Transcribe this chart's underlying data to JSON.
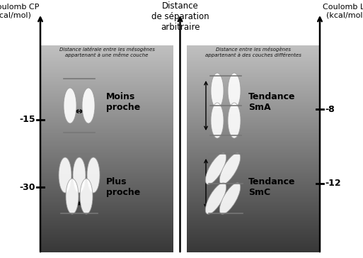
{
  "title_center": "Distance\nde séparation\narbitraire",
  "title_left": "Coulomb CP\n(kcal/mol)",
  "title_right": "Coulomb LP\n(kcal/mol)",
  "left_subtitle": "Distance latérale entre les mésogènes\nappartenant à une même couche",
  "right_subtitle": "Distance entre les mésogènes\nappartenant à des couches différentes",
  "label_moins_proche": "Moins\nproche",
  "label_plus_proche": "Plus\nproche",
  "label_tendance_sma": "Tendance\nSmA",
  "label_tendance_smc": "Tendance\nSmC",
  "figsize": [
    5.13,
    3.64
  ],
  "dpi": 100
}
